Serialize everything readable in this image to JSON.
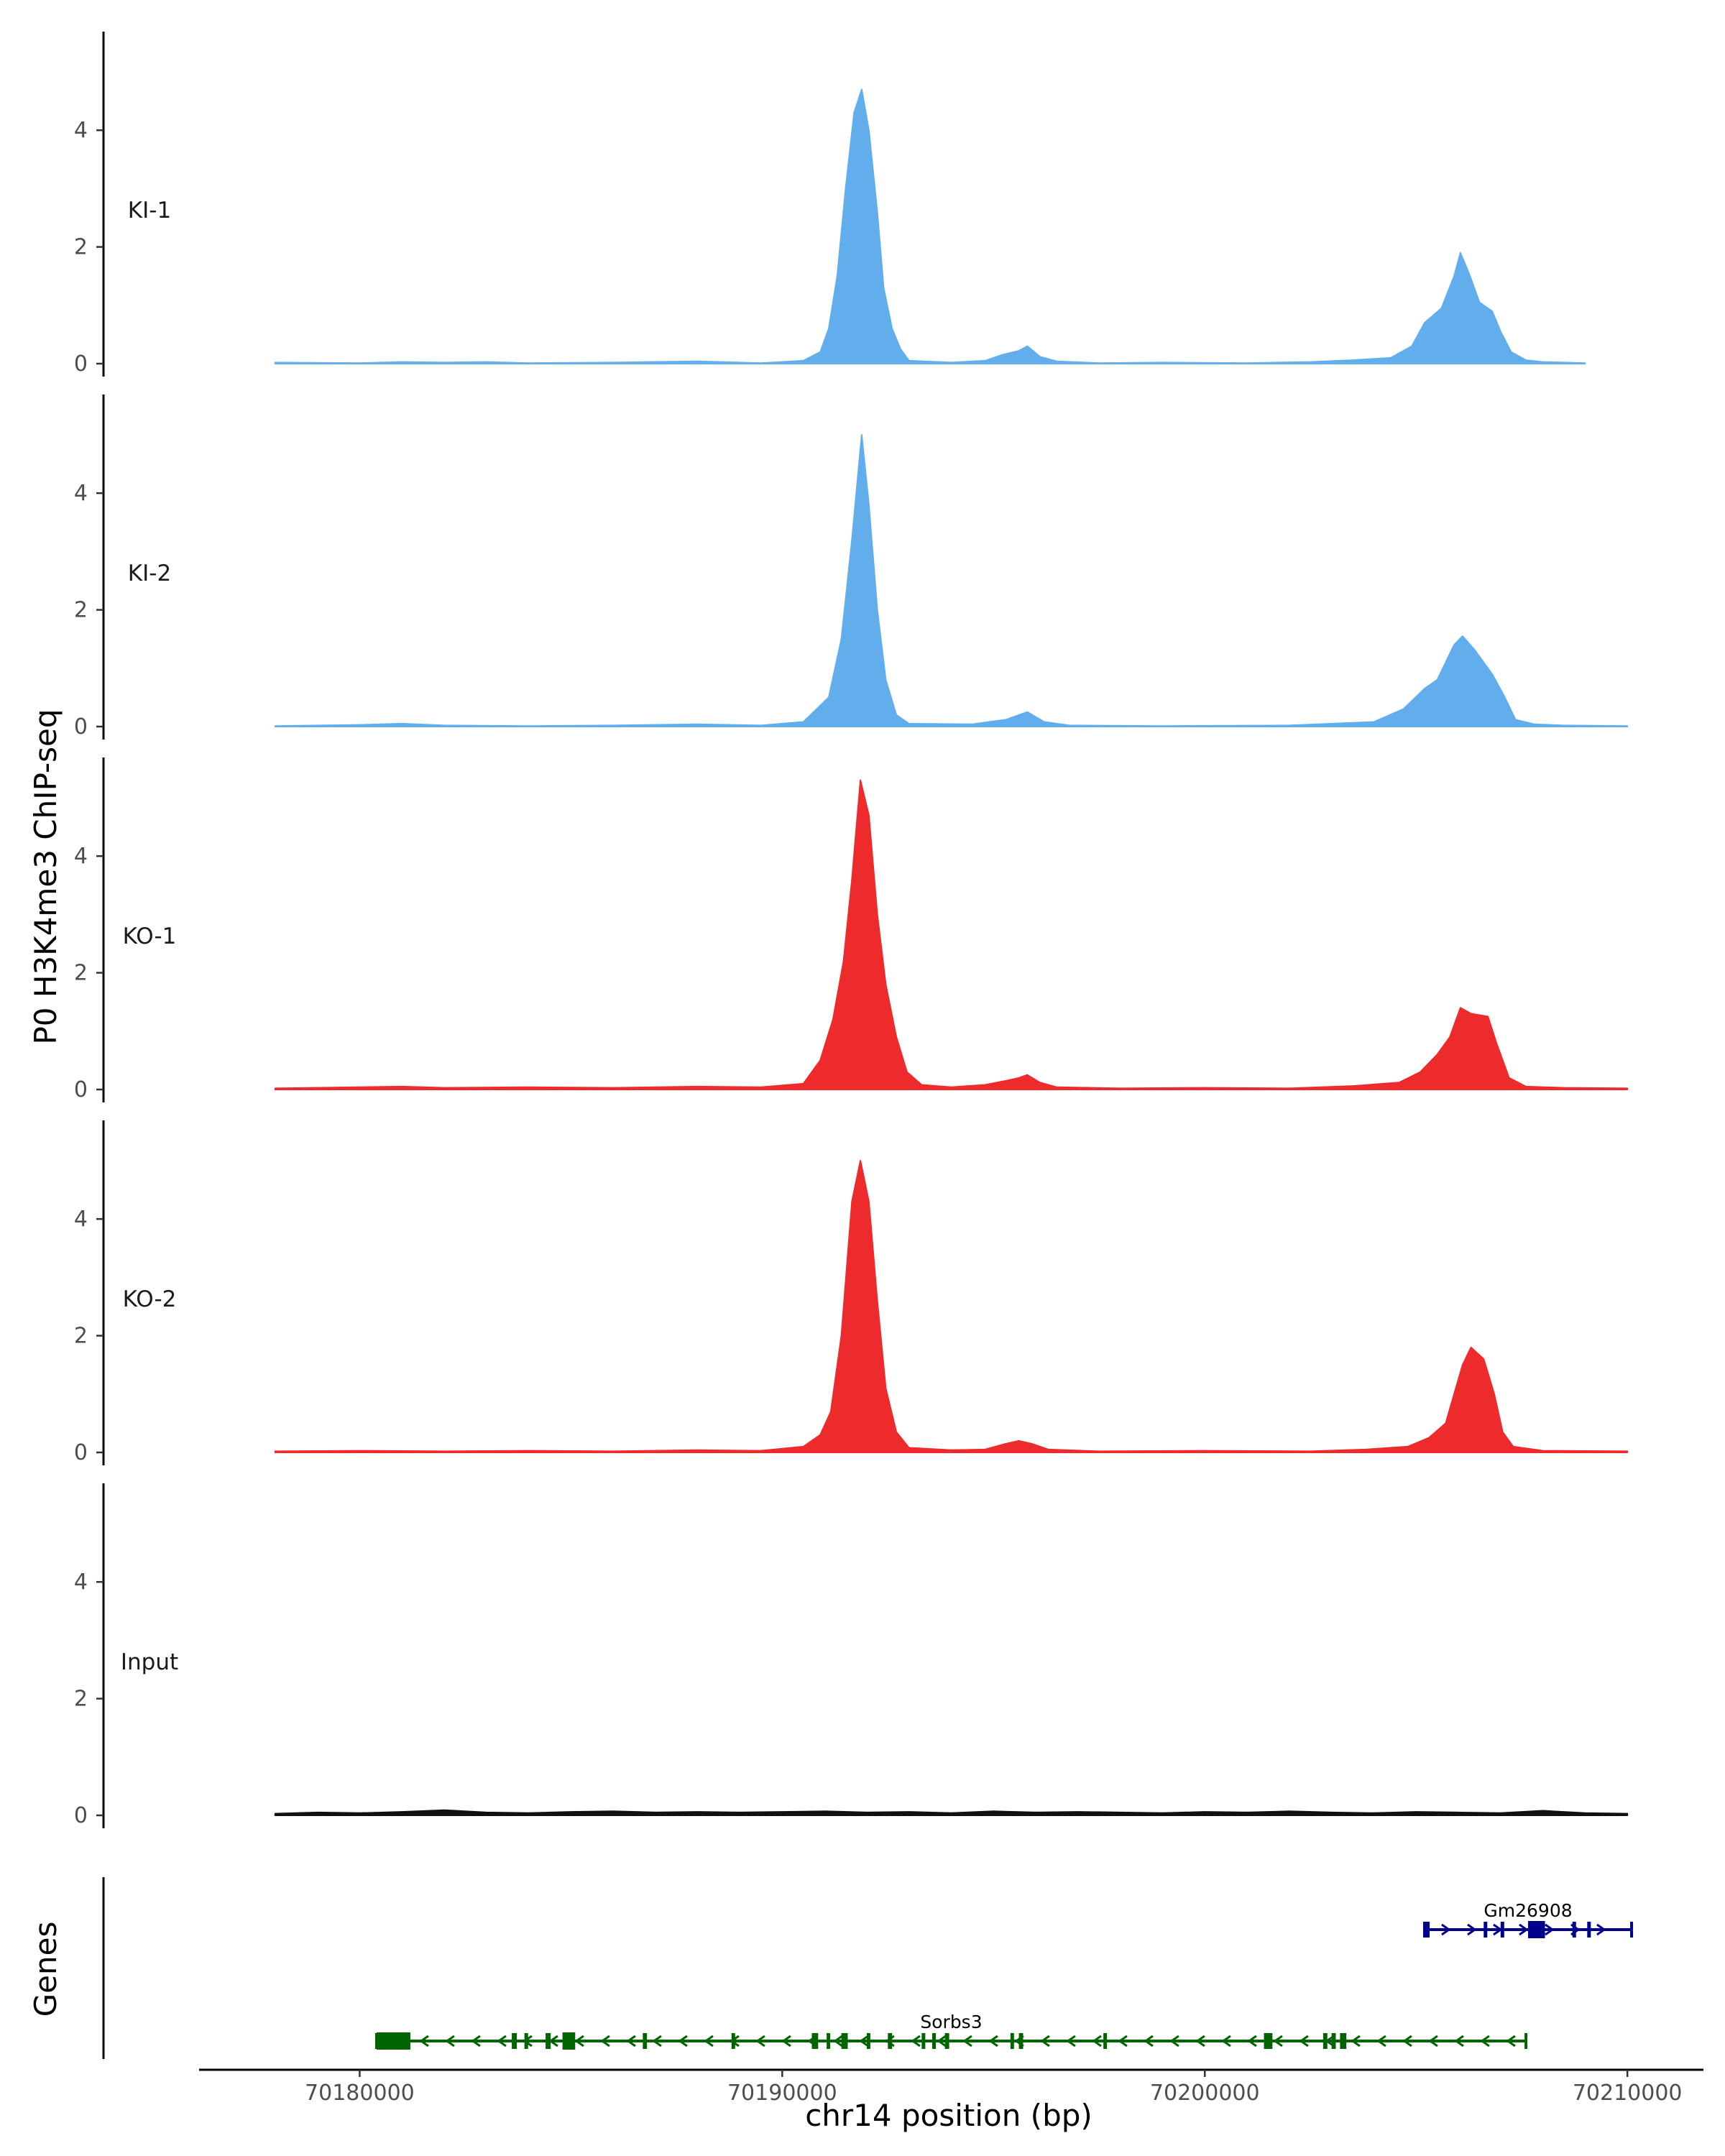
{
  "chart_data": {
    "type": "area",
    "title": "",
    "ylabel": "P0 H3K4me3 ChIP-seq",
    "xlabel": "chr14 position (bp)",
    "genes_label": "Genes",
    "xlim": [
      70176200,
      70211800
    ],
    "ylim": [
      -0.2,
      5.6
    ],
    "x_ticks": [
      70180000,
      70190000,
      70200000,
      70210000
    ],
    "x_tick_labels": [
      "70180000",
      "70190000",
      "70200000",
      "70210000"
    ],
    "y_ticks": [
      0,
      2,
      4
    ],
    "y_tick_labels": [
      "0",
      "2",
      "4"
    ],
    "colors": {
      "KI": "#62aeed",
      "KO": "#ee2b2c",
      "Input": "#111111",
      "gene_minus": "#006400",
      "gene_plus": "#00008b",
      "axis": "#000000"
    },
    "series": [
      {
        "name": "KI-1",
        "color": "#62aeed",
        "points": [
          [
            70178000,
            0.02
          ],
          [
            70180000,
            0.01
          ],
          [
            70181000,
            0.03
          ],
          [
            70182000,
            0.02
          ],
          [
            70183000,
            0.03
          ],
          [
            70184000,
            0.01
          ],
          [
            70186000,
            0.02
          ],
          [
            70188000,
            0.04
          ],
          [
            70189500,
            0.01
          ],
          [
            70190500,
            0.05
          ],
          [
            70190900,
            0.2
          ],
          [
            70191100,
            0.6
          ],
          [
            70191300,
            1.5
          ],
          [
            70191500,
            3.0
          ],
          [
            70191700,
            4.3
          ],
          [
            70191880,
            4.7
          ],
          [
            70192050,
            4.0
          ],
          [
            70192250,
            2.6
          ],
          [
            70192400,
            1.3
          ],
          [
            70192600,
            0.6
          ],
          [
            70192800,
            0.25
          ],
          [
            70193000,
            0.05
          ],
          [
            70194000,
            0.02
          ],
          [
            70194800,
            0.05
          ],
          [
            70195200,
            0.15
          ],
          [
            70195600,
            0.22
          ],
          [
            70195800,
            0.3
          ],
          [
            70196100,
            0.12
          ],
          [
            70196500,
            0.04
          ],
          [
            70197500,
            0.01
          ],
          [
            70199000,
            0.02
          ],
          [
            70201000,
            0.01
          ],
          [
            70202500,
            0.03
          ],
          [
            70203500,
            0.06
          ],
          [
            70204400,
            0.1
          ],
          [
            70204900,
            0.3
          ],
          [
            70205200,
            0.7
          ],
          [
            70205600,
            0.95
          ],
          [
            70205900,
            1.5
          ],
          [
            70206050,
            1.9
          ],
          [
            70206250,
            1.55
          ],
          [
            70206500,
            1.05
          ],
          [
            70206800,
            0.9
          ],
          [
            70207000,
            0.55
          ],
          [
            70207250,
            0.2
          ],
          [
            70207600,
            0.06
          ],
          [
            70208000,
            0.03
          ],
          [
            70209000,
            0.01
          ]
        ]
      },
      {
        "name": "KI-2",
        "color": "#62aeed",
        "points": [
          [
            70178000,
            0.01
          ],
          [
            70180000,
            0.03
          ],
          [
            70181000,
            0.05
          ],
          [
            70182000,
            0.02
          ],
          [
            70184000,
            0.01
          ],
          [
            70186000,
            0.02
          ],
          [
            70188000,
            0.04
          ],
          [
            70189500,
            0.02
          ],
          [
            70190500,
            0.08
          ],
          [
            70191100,
            0.5
          ],
          [
            70191400,
            1.5
          ],
          [
            70191650,
            3.2
          ],
          [
            70191880,
            5.0
          ],
          [
            70192050,
            3.8
          ],
          [
            70192250,
            2.0
          ],
          [
            70192450,
            0.8
          ],
          [
            70192700,
            0.2
          ],
          [
            70193000,
            0.05
          ],
          [
            70194500,
            0.04
          ],
          [
            70195300,
            0.12
          ],
          [
            70195800,
            0.25
          ],
          [
            70196200,
            0.08
          ],
          [
            70196800,
            0.02
          ],
          [
            70199000,
            0.01
          ],
          [
            70202000,
            0.02
          ],
          [
            70204000,
            0.08
          ],
          [
            70204700,
            0.3
          ],
          [
            70205200,
            0.65
          ],
          [
            70205500,
            0.8
          ],
          [
            70205900,
            1.4
          ],
          [
            70206100,
            1.55
          ],
          [
            70206400,
            1.3
          ],
          [
            70206800,
            0.9
          ],
          [
            70207100,
            0.5
          ],
          [
            70207350,
            0.12
          ],
          [
            70207800,
            0.04
          ],
          [
            70208500,
            0.02
          ],
          [
            70210000,
            0.01
          ]
        ]
      },
      {
        "name": "KO-1",
        "color": "#ee2b2c",
        "points": [
          [
            70178000,
            0.02
          ],
          [
            70180000,
            0.04
          ],
          [
            70181000,
            0.05
          ],
          [
            70182000,
            0.03
          ],
          [
            70184000,
            0.04
          ],
          [
            70186000,
            0.03
          ],
          [
            70188000,
            0.05
          ],
          [
            70189500,
            0.04
          ],
          [
            70190500,
            0.1
          ],
          [
            70190900,
            0.5
          ],
          [
            70191200,
            1.2
          ],
          [
            70191450,
            2.2
          ],
          [
            70191650,
            3.6
          ],
          [
            70191850,
            5.3
          ],
          [
            70192050,
            4.7
          ],
          [
            70192250,
            3.0
          ],
          [
            70192450,
            1.8
          ],
          [
            70192700,
            0.9
          ],
          [
            70192950,
            0.3
          ],
          [
            70193300,
            0.08
          ],
          [
            70194000,
            0.04
          ],
          [
            70194800,
            0.08
          ],
          [
            70195300,
            0.15
          ],
          [
            70195600,
            0.2
          ],
          [
            70195800,
            0.25
          ],
          [
            70196100,
            0.12
          ],
          [
            70196500,
            0.04
          ],
          [
            70198000,
            0.02
          ],
          [
            70200000,
            0.03
          ],
          [
            70202000,
            0.02
          ],
          [
            70203500,
            0.06
          ],
          [
            70204600,
            0.12
          ],
          [
            70205100,
            0.3
          ],
          [
            70205500,
            0.6
          ],
          [
            70205800,
            0.9
          ],
          [
            70206050,
            1.4
          ],
          [
            70206300,
            1.3
          ],
          [
            70206700,
            1.25
          ],
          [
            70206900,
            0.8
          ],
          [
            70207200,
            0.2
          ],
          [
            70207600,
            0.05
          ],
          [
            70208500,
            0.03
          ],
          [
            70210000,
            0.02
          ]
        ]
      },
      {
        "name": "KO-2",
        "color": "#ee2b2c",
        "points": [
          [
            70178000,
            0.02
          ],
          [
            70180000,
            0.03
          ],
          [
            70182000,
            0.02
          ],
          [
            70184000,
            0.03
          ],
          [
            70186000,
            0.02
          ],
          [
            70188000,
            0.04
          ],
          [
            70189500,
            0.03
          ],
          [
            70190500,
            0.1
          ],
          [
            70190900,
            0.3
          ],
          [
            70191150,
            0.7
          ],
          [
            70191400,
            2.0
          ],
          [
            70191650,
            4.3
          ],
          [
            70191850,
            5.0
          ],
          [
            70192050,
            4.3
          ],
          [
            70192250,
            2.6
          ],
          [
            70192450,
            1.1
          ],
          [
            70192700,
            0.35
          ],
          [
            70193000,
            0.08
          ],
          [
            70194000,
            0.04
          ],
          [
            70194800,
            0.05
          ],
          [
            70195300,
            0.15
          ],
          [
            70195600,
            0.2
          ],
          [
            70195900,
            0.15
          ],
          [
            70196300,
            0.05
          ],
          [
            70197500,
            0.02
          ],
          [
            70200000,
            0.03
          ],
          [
            70202500,
            0.02
          ],
          [
            70203800,
            0.05
          ],
          [
            70204800,
            0.1
          ],
          [
            70205300,
            0.25
          ],
          [
            70205700,
            0.5
          ],
          [
            70205900,
            1.0
          ],
          [
            70206100,
            1.5
          ],
          [
            70206300,
            1.8
          ],
          [
            70206600,
            1.6
          ],
          [
            70206850,
            1.0
          ],
          [
            70207050,
            0.35
          ],
          [
            70207300,
            0.1
          ],
          [
            70208000,
            0.03
          ],
          [
            70210000,
            0.02
          ]
        ]
      },
      {
        "name": "Input",
        "color": "#111111",
        "points": [
          [
            70178000,
            0.03
          ],
          [
            70179000,
            0.05
          ],
          [
            70180000,
            0.04
          ],
          [
            70181000,
            0.06
          ],
          [
            70182000,
            0.09
          ],
          [
            70183000,
            0.05
          ],
          [
            70184000,
            0.04
          ],
          [
            70185000,
            0.06
          ],
          [
            70186000,
            0.07
          ],
          [
            70187000,
            0.05
          ],
          [
            70188000,
            0.06
          ],
          [
            70189000,
            0.05
          ],
          [
            70190000,
            0.06
          ],
          [
            70191000,
            0.07
          ],
          [
            70192000,
            0.05
          ],
          [
            70193000,
            0.06
          ],
          [
            70194000,
            0.04
          ],
          [
            70195000,
            0.07
          ],
          [
            70196000,
            0.05
          ],
          [
            70197000,
            0.06
          ],
          [
            70198000,
            0.05
          ],
          [
            70199000,
            0.04
          ],
          [
            70200000,
            0.06
          ],
          [
            70201000,
            0.05
          ],
          [
            70202000,
            0.07
          ],
          [
            70203000,
            0.05
          ],
          [
            70204000,
            0.04
          ],
          [
            70205000,
            0.06
          ],
          [
            70206000,
            0.05
          ],
          [
            70207000,
            0.04
          ],
          [
            70208000,
            0.08
          ],
          [
            70209000,
            0.04
          ],
          [
            70210000,
            0.03
          ]
        ]
      }
    ],
    "genes": [
      {
        "name": "Gm26908",
        "strand": "+",
        "color": "#00008b",
        "start": 70205200,
        "end": 70210100,
        "exons": [
          [
            70205200,
            70205320
          ],
          [
            70206600,
            70206650
          ],
          [
            70207000,
            70207050
          ],
          [
            70207650,
            70208050
          ],
          [
            70208700,
            70208780
          ],
          [
            70209050,
            70209120
          ]
        ]
      },
      {
        "name": "Sorbs3",
        "strand": "-",
        "color": "#006400",
        "start": 70180400,
        "end": 70207600,
        "exons": [
          [
            70180400,
            70181200
          ],
          [
            70183600,
            70183720
          ],
          [
            70183900,
            70183980
          ],
          [
            70184400,
            70184520
          ],
          [
            70184800,
            70185100
          ],
          [
            70186700,
            70186800
          ],
          [
            70188800,
            70188870
          ],
          [
            70190700,
            70190850
          ],
          [
            70191050,
            70191120
          ],
          [
            70191400,
            70191550
          ],
          [
            70192000,
            70192080
          ],
          [
            70192500,
            70192600
          ],
          [
            70193300,
            70193380
          ],
          [
            70193550,
            70193620
          ],
          [
            70193850,
            70193950
          ],
          [
            70195400,
            70195480
          ],
          [
            70195600,
            70195700
          ],
          [
            70197600,
            70197680
          ],
          [
            70201400,
            70201600
          ],
          [
            70202800,
            70202900
          ],
          [
            70203000,
            70203100
          ],
          [
            70203200,
            70203350
          ]
        ]
      }
    ]
  }
}
